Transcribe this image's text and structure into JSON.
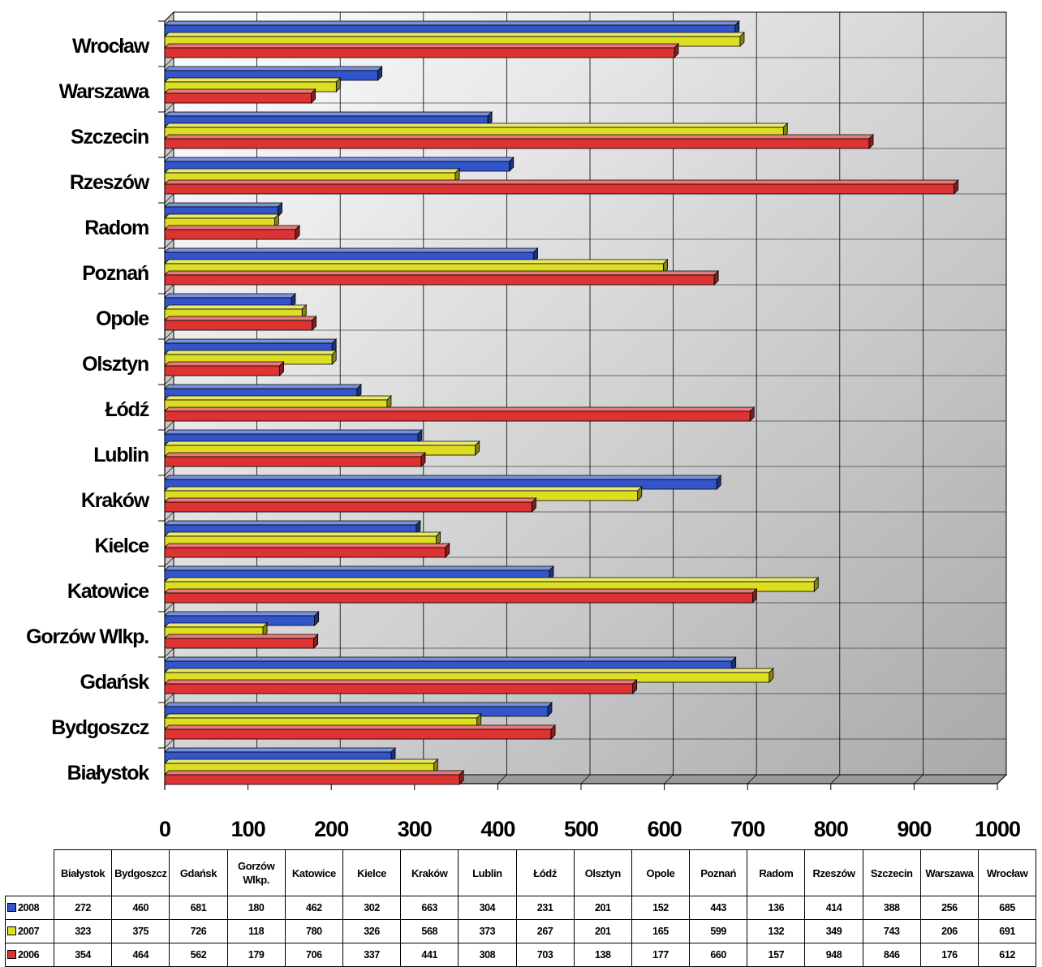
{
  "chart_data": {
    "type": "bar",
    "orientation": "horizontal",
    "style": "3d",
    "categories": [
      "Białystok",
      "Bydgoszcz",
      "Gdańsk",
      "Gorzów Wlkp.",
      "Katowice",
      "Kielce",
      "Kraków",
      "Lublin",
      "Łódź",
      "Olsztyn",
      "Opole",
      "Poznań",
      "Radom",
      "Rzeszów",
      "Szczecin",
      "Warszawa",
      "Wrocław"
    ],
    "series": [
      {
        "name": "2008",
        "color": "#3355CC",
        "values": [
          272,
          460,
          681,
          180,
          462,
          302,
          663,
          304,
          231,
          201,
          152,
          443,
          136,
          414,
          388,
          256,
          685
        ]
      },
      {
        "name": "2007",
        "color": "#DDDD22",
        "values": [
          323,
          375,
          726,
          118,
          780,
          326,
          568,
          373,
          267,
          201,
          165,
          599,
          132,
          349,
          743,
          206,
          691
        ]
      },
      {
        "name": "2006",
        "color": "#DD3333",
        "values": [
          354,
          464,
          562,
          179,
          706,
          337,
          441,
          308,
          703,
          138,
          177,
          660,
          157,
          948,
          846,
          176,
          612
        ]
      }
    ],
    "xlim": [
      0,
      1000
    ],
    "x_ticks": [
      "0",
      "100",
      "200",
      "300",
      "400",
      "500",
      "600",
      "700",
      "800",
      "900",
      "1000"
    ],
    "grid": true,
    "legend": "data-table-below"
  },
  "table": {
    "header_labels": [
      "Białystok",
      "Bydgoszcz",
      "Gdańsk",
      "Gorzów Wlkp.",
      "Katowice",
      "Kielce",
      "Kraków",
      "Lublin",
      "Łódź",
      "Olsztyn",
      "Opole",
      "Poznań",
      "Radom",
      "Rzeszów",
      "Szczecin",
      "Warszawa",
      "Wrocław"
    ]
  }
}
